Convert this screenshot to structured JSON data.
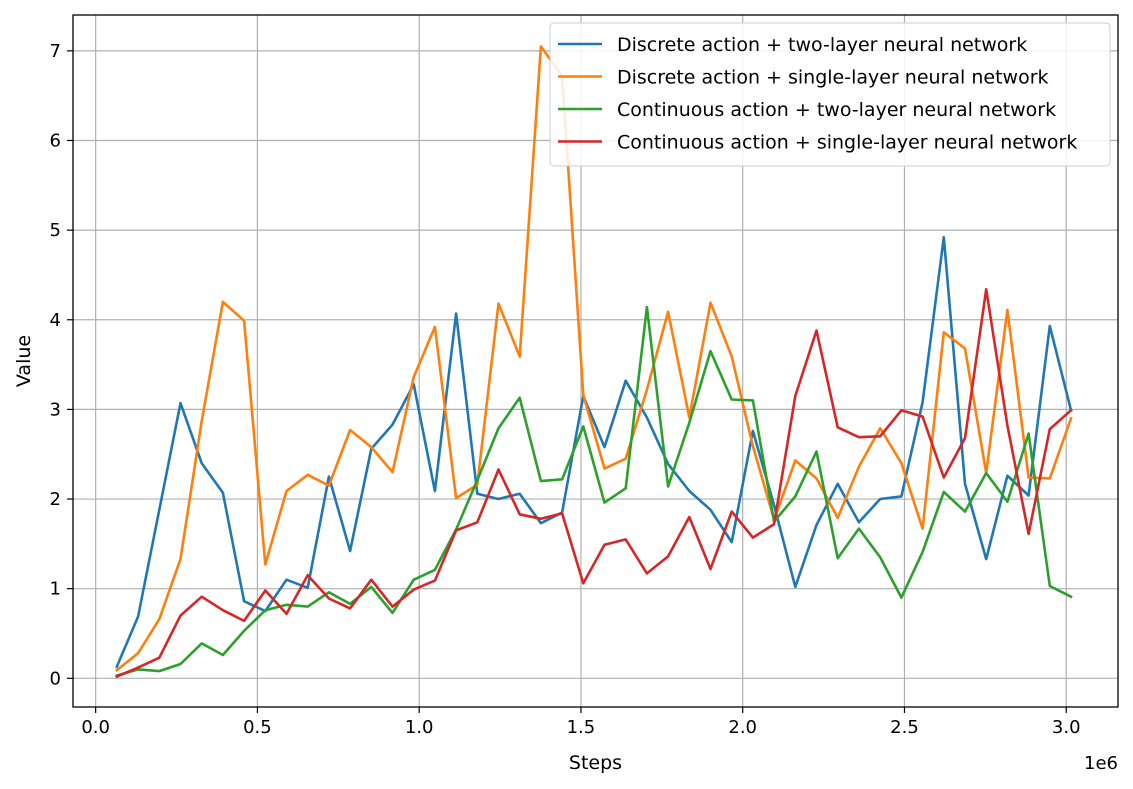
{
  "chart_data": {
    "type": "line",
    "xlabel": "Steps",
    "ylabel": "Value",
    "x_offset_label": "1e6",
    "xlim": [
      -70000,
      3160000
    ],
    "ylim": [
      -0.32,
      7.4
    ],
    "x_ticks": [
      0,
      500000,
      1000000,
      1500000,
      2000000,
      2500000,
      3000000
    ],
    "x_tick_labels": [
      "0.0",
      "0.5",
      "1.0",
      "1.5",
      "2.0",
      "2.5",
      "3.0"
    ],
    "y_ticks": [
      0,
      1,
      2,
      3,
      4,
      5,
      6,
      7
    ],
    "y_tick_labels": [
      "0",
      "1",
      "2",
      "3",
      "4",
      "5",
      "6",
      "7"
    ],
    "grid": true,
    "legend_position": "top-right",
    "x": [
      65536,
      131072,
      196608,
      262144,
      327680,
      393216,
      458752,
      524288,
      589824,
      655360,
      720896,
      786432,
      851968,
      917504,
      983040,
      1048576,
      1114112,
      1179648,
      1245184,
      1310720,
      1376256,
      1441792,
      1507328,
      1572864,
      1638400,
      1703936,
      1769472,
      1835008,
      1900544,
      1966080,
      2031616,
      2097152,
      2162688,
      2228224,
      2293760,
      2359296,
      2424832,
      2490368,
      2555904,
      2621440,
      2686976,
      2752512,
      2818048,
      2883584,
      2949120,
      3014656
    ],
    "series": [
      {
        "name": "Discrete action + two-layer neural network",
        "color": "#1f77b4",
        "values": [
          0.13,
          0.69,
          1.88,
          3.07,
          2.4,
          2.07,
          0.86,
          0.75,
          1.1,
          1.01,
          2.25,
          1.42,
          2.56,
          2.83,
          3.28,
          2.09,
          4.07,
          2.06,
          2.0,
          2.06,
          1.73,
          1.85,
          3.15,
          2.58,
          3.32,
          2.91,
          2.39,
          2.09,
          1.88,
          1.52,
          2.76,
          1.93,
          1.02,
          1.71,
          2.17,
          1.74,
          2.0,
          2.03,
          3.08,
          4.92,
          2.17,
          1.33,
          2.26,
          2.04,
          3.93,
          2.99
        ]
      },
      {
        "name": "Discrete action + single-layer neural network",
        "color": "#ff7f0e",
        "values": [
          0.09,
          0.28,
          0.66,
          1.33,
          2.87,
          4.2,
          3.99,
          1.27,
          2.09,
          2.27,
          2.15,
          2.77,
          2.58,
          2.3,
          3.36,
          3.92,
          2.01,
          2.16,
          4.18,
          3.59,
          7.05,
          6.72,
          3.16,
          2.34,
          2.45,
          3.22,
          4.09,
          2.91,
          4.19,
          3.59,
          2.59,
          1.77,
          2.43,
          2.23,
          1.79,
          2.36,
          2.79,
          2.4,
          1.67,
          3.86,
          3.68,
          2.29,
          4.11,
          2.24,
          2.23,
          2.9
        ]
      },
      {
        "name": "Continuous action + two-layer neural network",
        "color": "#2ca02c",
        "values": [
          0.03,
          0.1,
          0.08,
          0.16,
          0.39,
          0.26,
          0.53,
          0.76,
          0.82,
          0.8,
          0.96,
          0.83,
          1.02,
          0.73,
          1.1,
          1.21,
          1.66,
          2.21,
          2.79,
          3.13,
          2.2,
          2.22,
          2.81,
          1.96,
          2.12,
          4.14,
          2.14,
          2.85,
          3.65,
          3.11,
          3.1,
          1.75,
          2.03,
          2.53,
          1.34,
          1.67,
          1.35,
          0.9,
          1.41,
          2.08,
          1.86,
          2.29,
          1.97,
          2.73,
          1.03,
          0.91
        ]
      },
      {
        "name": "Continuous action + single-layer neural network",
        "color": "#d62728",
        "values": [
          0.02,
          0.12,
          0.23,
          0.7,
          0.91,
          0.76,
          0.64,
          0.98,
          0.72,
          1.15,
          0.89,
          0.78,
          1.1,
          0.8,
          0.99,
          1.09,
          1.65,
          1.74,
          2.33,
          1.83,
          1.78,
          1.84,
          1.06,
          1.49,
          1.55,
          1.17,
          1.36,
          1.8,
          1.22,
          1.86,
          1.57,
          1.72,
          3.15,
          3.88,
          2.8,
          2.69,
          2.7,
          2.99,
          2.92,
          2.24,
          2.68,
          4.34,
          2.82,
          1.61,
          2.78,
          2.99
        ]
      }
    ]
  }
}
